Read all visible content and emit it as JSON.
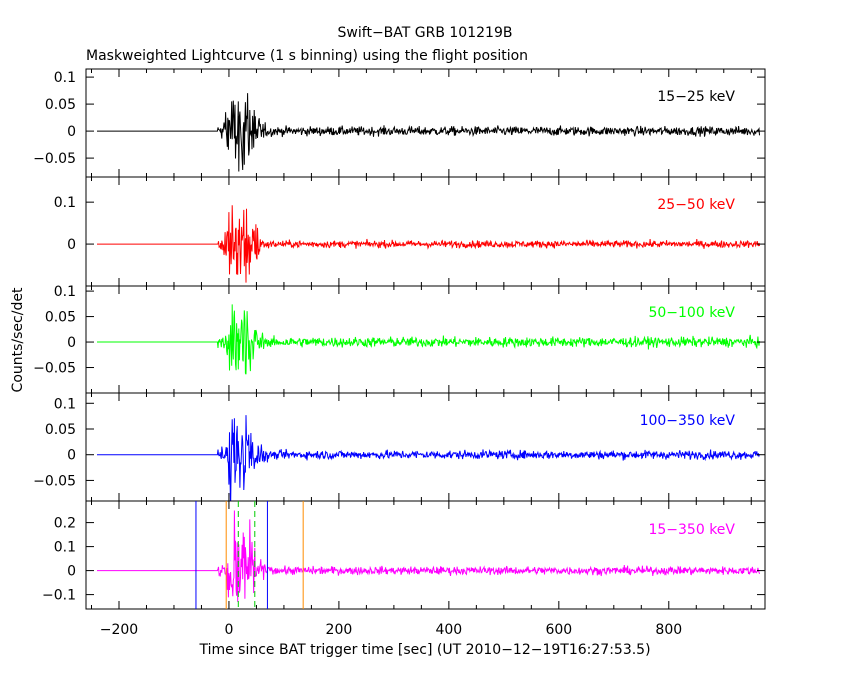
{
  "chart_data": {
    "type": "line",
    "title": "Swift−BAT GRB 101219B",
    "subtitle": "Maskweighted Lightcurve (1 s binning) using the flight position",
    "ylabel": "Counts/sec/det",
    "xlabel": "Time since BAT trigger time [sec] (UT 2010−12−19T16:27:53.5)",
    "xlim": [
      -260,
      975
    ],
    "x_ticks": [
      -200,
      0,
      200,
      400,
      600,
      800
    ],
    "x_tick_labels": [
      "−200",
      "0",
      "200",
      "400",
      "600",
      "800"
    ],
    "data_start": -240,
    "burst_onset": -20,
    "data_end": 965,
    "panels": [
      {
        "name": "15−25 keV",
        "color": "#000000",
        "ylim": [
          -0.085,
          0.115
        ],
        "ticks": [
          0.1,
          0.05,
          0,
          -0.05
        ],
        "tick_labels": [
          "0.1",
          "0.05",
          "0",
          "−0.05"
        ],
        "noise": 0.006,
        "burst_amp": 0.09,
        "burst_end": 80
      },
      {
        "name": "25−50 keV",
        "color": "#ff0000",
        "ylim": [
          -0.1,
          0.16
        ],
        "ticks": [
          0.1,
          0
        ],
        "tick_labels": [
          "0.1",
          "0"
        ],
        "noise": 0.006,
        "burst_amp": 0.13,
        "burst_end": 80
      },
      {
        "name": "50−100 keV",
        "color": "#00ff00",
        "ylim": [
          -0.1,
          0.11
        ],
        "ticks": [
          0.1,
          0.05,
          0,
          -0.05
        ],
        "tick_labels": [
          "0.1",
          "0.05",
          "0",
          "−0.05"
        ],
        "noise": 0.007,
        "burst_amp": 0.1,
        "burst_end": 85
      },
      {
        "name": "100−350 keV",
        "color": "#0000ff",
        "ylim": [
          -0.09,
          0.12
        ],
        "ticks": [
          0.1,
          0.05,
          0,
          -0.05
        ],
        "tick_labels": [
          "0.1",
          "0.05",
          "0",
          "−0.05"
        ],
        "noise": 0.006,
        "burst_amp": 0.1,
        "burst_end": 85
      },
      {
        "name": "15−350 keV",
        "color": "#ff00ff",
        "ylim": [
          -0.16,
          0.29
        ],
        "ticks": [
          0.2,
          0.1,
          0,
          -0.1
        ],
        "tick_labels": [
          "0.2",
          "0.1",
          "0",
          "−0.1"
        ],
        "noise": 0.012,
        "burst_amp": 0.25,
        "burst_end": 90
      }
    ],
    "markers": [
      {
        "x": -60,
        "color": "#0000ff",
        "style": "solid"
      },
      {
        "x": 70,
        "color": "#0000ff",
        "style": "solid"
      },
      {
        "x": -5,
        "color": "#ff8c00",
        "style": "solid"
      },
      {
        "x": 135,
        "color": "#ff8c00",
        "style": "solid"
      },
      {
        "x": 17,
        "color": "#00cc00",
        "style": "dashed"
      },
      {
        "x": 47,
        "color": "#00cc00",
        "style": "dashed"
      }
    ]
  }
}
